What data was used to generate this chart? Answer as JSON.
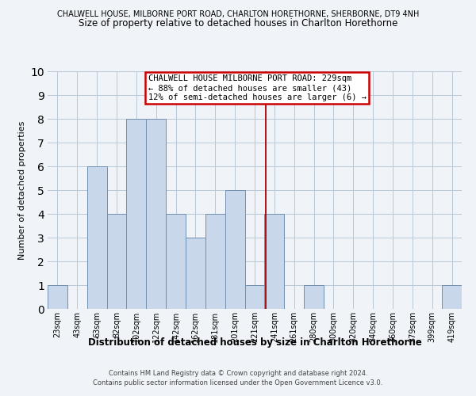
{
  "title_top": "CHALWELL HOUSE, MILBORNE PORT ROAD, CHARLTON HORETHORNE, SHERBORNE, DT9 4NH",
  "title_main": "Size of property relative to detached houses in Charlton Horethorne",
  "xlabel": "Distribution of detached houses by size in Charlton Horethorne",
  "ylabel": "Number of detached properties",
  "bin_labels": [
    "23sqm",
    "43sqm",
    "63sqm",
    "82sqm",
    "102sqm",
    "122sqm",
    "142sqm",
    "162sqm",
    "181sqm",
    "201sqm",
    "221sqm",
    "241sqm",
    "261sqm",
    "280sqm",
    "300sqm",
    "320sqm",
    "340sqm",
    "360sqm",
    "379sqm",
    "399sqm",
    "419sqm"
  ],
  "bar_heights": [
    1,
    0,
    6,
    4,
    8,
    8,
    4,
    3,
    4,
    5,
    1,
    4,
    0,
    1,
    0,
    0,
    0,
    0,
    0,
    0,
    1
  ],
  "bar_color": "#c8d8ea",
  "bar_edge_color": "#7090b0",
  "vline_x": 10.55,
  "vline_color": "#aa0000",
  "ylim": [
    0,
    10
  ],
  "annotation_title": "CHALWELL HOUSE MILBORNE PORT ROAD: 229sqm",
  "annotation_line1": "← 88% of detached houses are smaller (43)",
  "annotation_line2": "12% of semi-detached houses are larger (6) →",
  "footnote1": "Contains HM Land Registry data © Crown copyright and database right 2024.",
  "footnote2": "Contains public sector information licensed under the Open Government Licence v3.0.",
  "background_color": "#f0f4f8",
  "grid_color": "#b8c8d8"
}
